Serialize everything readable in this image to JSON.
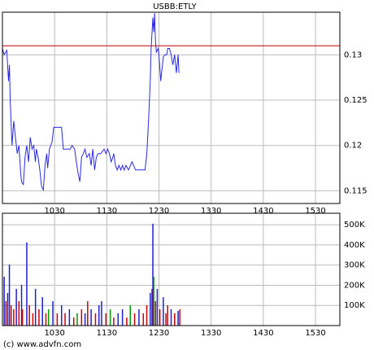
{
  "chart_data": [
    {
      "type": "line",
      "title": "USBB:ETLY",
      "color": "#2a2ae0",
      "x": [
        570,
        572,
        575,
        577,
        578,
        579,
        581,
        583,
        585,
        587,
        589,
        591,
        592,
        594,
        596,
        598,
        600,
        602,
        604,
        606,
        608,
        609,
        611,
        613,
        615,
        617,
        619,
        621,
        622,
        624,
        627,
        629,
        633,
        638,
        640,
        644,
        648,
        650,
        653,
        655,
        657,
        659,
        661,
        663,
        665,
        667,
        670,
        672,
        674,
        676,
        678,
        680,
        683,
        687,
        689,
        691,
        693,
        695,
        697,
        698,
        700,
        702,
        704,
        706,
        708,
        710,
        712,
        715,
        719,
        723,
        728,
        734,
        736,
        738,
        740,
        741,
        743,
        744,
        745,
        746,
        747,
        749,
        750,
        752,
        755,
        757,
        759,
        760,
        762,
        764,
        766,
        768,
        770,
        772,
        773
      ],
      "values": [
        0.1307,
        0.13,
        0.1305,
        0.1271,
        0.1289,
        0.1249,
        0.12,
        0.1227,
        0.1209,
        0.1191,
        0.12,
        0.1169,
        0.116,
        0.1157,
        0.1187,
        0.12,
        0.1182,
        0.1209,
        0.1196,
        0.12,
        0.1182,
        0.1196,
        0.1187,
        0.1173,
        0.1155,
        0.1151,
        0.1178,
        0.1191,
        0.1175,
        0.1196,
        0.1204,
        0.122,
        0.122,
        0.122,
        0.1196,
        0.1196,
        0.1196,
        0.12,
        0.1196,
        0.1182,
        0.1169,
        0.116,
        0.1187,
        0.1191,
        0.1196,
        0.1187,
        0.1191,
        0.1178,
        0.1196,
        0.1173,
        0.1187,
        0.1191,
        0.1191,
        0.1196,
        0.1191,
        0.1196,
        0.1191,
        0.1182,
        0.1187,
        0.1191,
        0.1178,
        0.1173,
        0.1178,
        0.1173,
        0.1178,
        0.1173,
        0.1178,
        0.1173,
        0.1182,
        0.1173,
        0.1173,
        0.1173,
        0.1191,
        0.1227,
        0.1271,
        0.1307,
        0.1341,
        0.1325,
        0.1346,
        0.1316,
        0.1303,
        0.1307,
        0.13,
        0.1271,
        0.1298,
        0.13,
        0.13,
        0.1307,
        0.1307,
        0.13,
        0.1289,
        0.13,
        0.128,
        0.13,
        0.128
      ],
      "reference_line": 0.131,
      "reference_color": "#cc0000",
      "xlim": [
        570,
        958
      ],
      "xticks": [
        {
          "value": 630,
          "label": "1030"
        },
        {
          "value": 690,
          "label": "1130"
        },
        {
          "value": 750,
          "label": "1230"
        },
        {
          "value": 810,
          "label": "1330"
        },
        {
          "value": 870,
          "label": "1430"
        },
        {
          "value": 930,
          "label": "1530"
        }
      ],
      "ylim": [
        0.1136,
        0.1347
      ],
      "yticks": [
        0.115,
        0.12,
        0.125,
        0.13
      ],
      "grid": true
    },
    {
      "type": "bar",
      "x": [
        572,
        574,
        576,
        578,
        580,
        583,
        586,
        589,
        592,
        593,
        598,
        601,
        605,
        608,
        612,
        616,
        620,
        623,
        628,
        633,
        638,
        642,
        647,
        652,
        656,
        661,
        665,
        668,
        672,
        677,
        681,
        684,
        689,
        694,
        698,
        703,
        708,
        713,
        717,
        722,
        727,
        732,
        736,
        740,
        742,
        743,
        744,
        746,
        748,
        751,
        755,
        758,
        760,
        764,
        768,
        772,
        774
      ],
      "values": [
        242000,
        121000,
        162000,
        303000,
        101000,
        81000,
        182000,
        121000,
        202000,
        81000,
        412000,
        101000,
        61000,
        182000,
        81000,
        141000,
        61000,
        81000,
        121000,
        61000,
        101000,
        61000,
        81000,
        40000,
        61000,
        81000,
        61000,
        121000,
        81000,
        61000,
        101000,
        121000,
        61000,
        81000,
        40000,
        61000,
        81000,
        40000,
        101000,
        61000,
        81000,
        61000,
        101000,
        162000,
        182000,
        505000,
        242000,
        121000,
        182000,
        81000,
        141000,
        61000,
        101000,
        81000,
        61000,
        73000,
        81000
      ],
      "colors": [
        "#2020d0",
        "#cc0000",
        "#2020d0",
        "#2020d0",
        "#cc0000",
        "#cc0000",
        "#2020d0",
        "#cc0000",
        "#2020d0",
        "#cc0000",
        "#2020d0",
        "#cc0000",
        "#cc0000",
        "#2020d0",
        "#cc0000",
        "#2020d0",
        "#cc0000",
        "#009900",
        "#2020d0",
        "#cc0000",
        "#2020d0",
        "#cc0000",
        "#2020d0",
        "#cc0000",
        "#009900",
        "#cc0000",
        "#2020d0",
        "#cc0000",
        "#2020d0",
        "#cc0000",
        "#2020d0",
        "#2020d0",
        "#cc0000",
        "#009900",
        "#cc0000",
        "#2020d0",
        "#2020d0",
        "#cc0000",
        "#009900",
        "#cc0000",
        "#2020d0",
        "#cc0000",
        "#cc0000",
        "#2020d0",
        "#cc0000",
        "#2020d0",
        "#009900",
        "#cc0000",
        "#2020d0",
        "#cc0000",
        "#2020d0",
        "#cc0000",
        "#cc0000",
        "#2020d0",
        "#cc0000",
        "#2020d0",
        "#cc0000"
      ],
      "xlim": [
        570,
        958
      ],
      "xticks": [
        {
          "value": 630,
          "label": "1030"
        },
        {
          "value": 690,
          "label": "1130"
        },
        {
          "value": 750,
          "label": "1230"
        },
        {
          "value": 810,
          "label": "1330"
        },
        {
          "value": 870,
          "label": "1430"
        },
        {
          "value": 930,
          "label": "1530"
        }
      ],
      "ylim": [
        0,
        557000
      ],
      "yticks": [
        {
          "value": 100000,
          "label": "100K"
        },
        {
          "value": 200000,
          "label": "200K"
        },
        {
          "value": 300000,
          "label": "300K"
        },
        {
          "value": 400000,
          "label": "400K"
        },
        {
          "value": 500000,
          "label": "500K"
        }
      ],
      "grid": true
    }
  ],
  "footer": "(c) www.advfn.com"
}
